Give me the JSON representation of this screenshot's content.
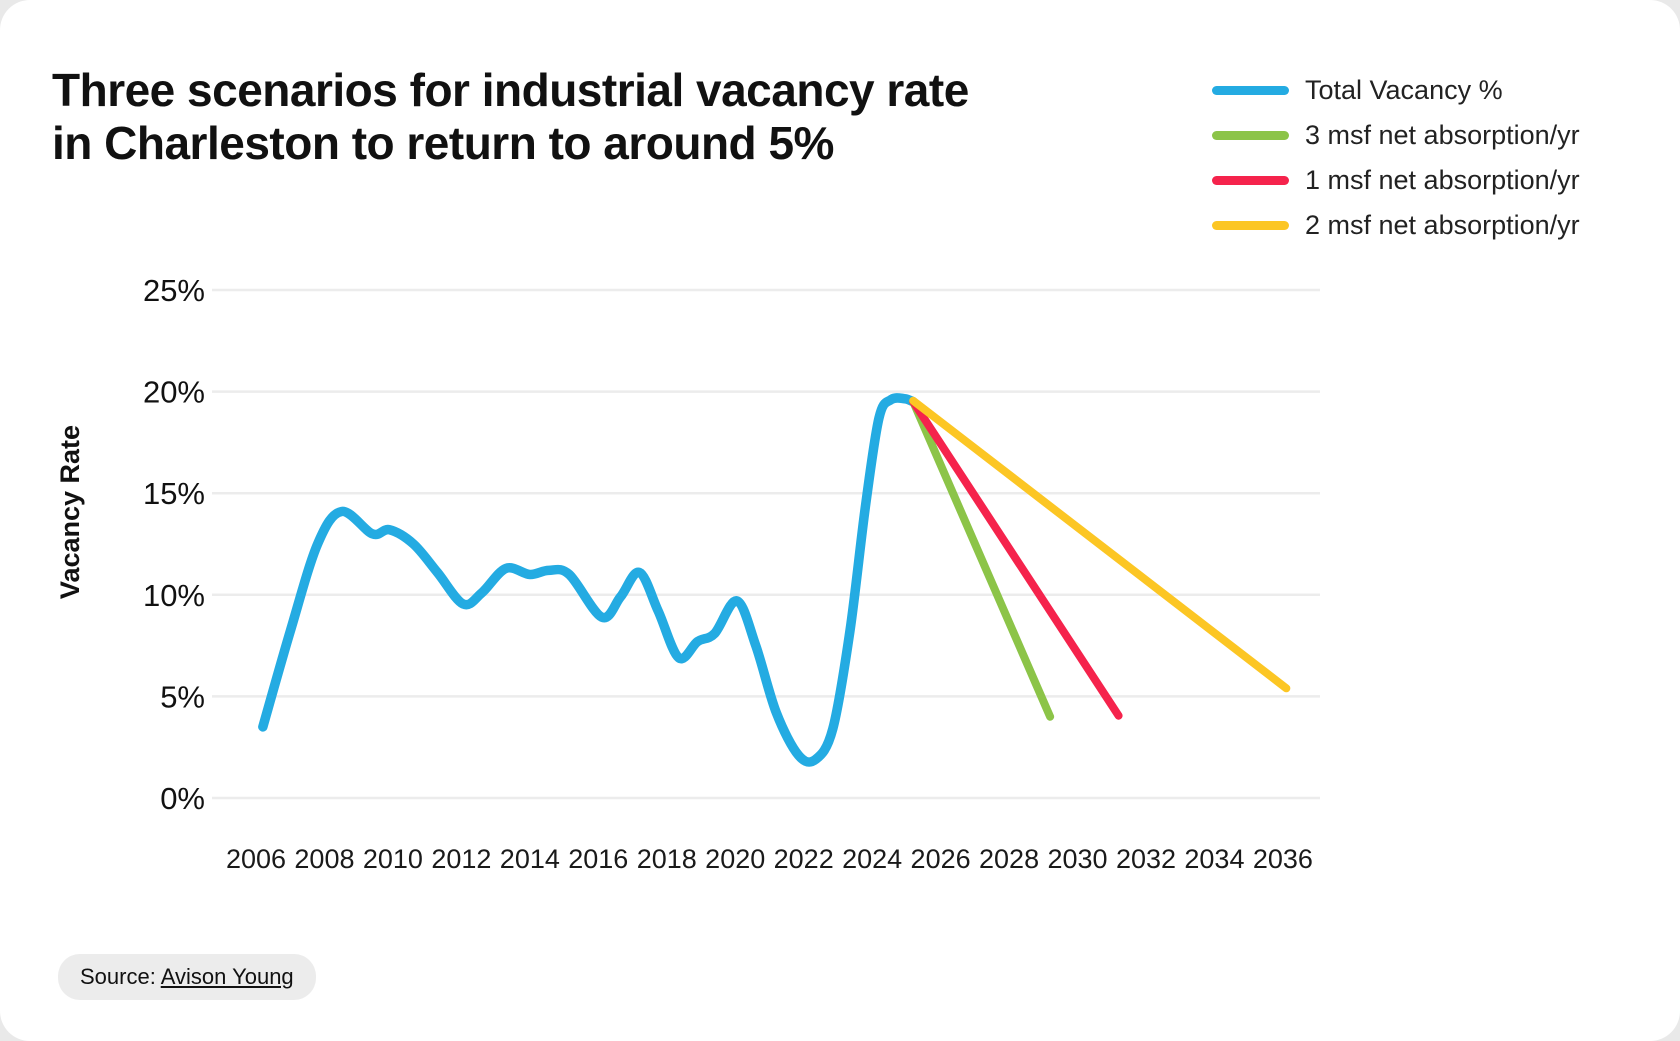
{
  "title": {
    "line1": "Three scenarios for industrial vacancy rate",
    "line2": "in Charleston to return to around 5%"
  },
  "legend": {
    "items": [
      {
        "label": "Total Vacancy %",
        "color": "#24ABE2"
      },
      {
        "label": "3 msf net absorption/yr",
        "color": "#8CC448"
      },
      {
        "label": "1 msf net absorption/yr",
        "color": "#F5234C"
      },
      {
        "label": "2 msf net absorption/yr",
        "color": "#FCC624"
      }
    ]
  },
  "source": {
    "prefix": "Source: ",
    "link_text": "Avison Young"
  },
  "chart_data": {
    "type": "line",
    "title": "Three scenarios for industrial vacancy rate in Charleston to return to around 5%",
    "xlabel": "",
    "ylabel": "Vacancy Rate",
    "xlim": [
      2005.5,
      2037.3
    ],
    "ylim": [
      0,
      25
    ],
    "grid": true,
    "grid_color": "#ececec",
    "legend_position": "top-right",
    "x_ticks": [
      2006,
      2008,
      2010,
      2012,
      2014,
      2016,
      2018,
      2020,
      2022,
      2024,
      2026,
      2028,
      2030,
      2032,
      2034,
      2036
    ],
    "y_ticks": [
      {
        "value": 0,
        "label": "0%"
      },
      {
        "value": 5,
        "label": "5%"
      },
      {
        "value": 10,
        "label": "10%"
      },
      {
        "value": 15,
        "label": "15%"
      },
      {
        "value": 20,
        "label": "20%"
      },
      {
        "value": 25,
        "label": "25%"
      }
    ],
    "series": [
      {
        "name": "Total Vacancy %",
        "color": "#24ABE2",
        "smooth": true,
        "stroke_width": 9.5,
        "points": [
          [
            2006.2,
            3.5
          ],
          [
            2007.0,
            8.2
          ],
          [
            2007.8,
            12.5
          ],
          [
            2008.5,
            14.1
          ],
          [
            2009.4,
            13.0
          ],
          [
            2009.9,
            13.2
          ],
          [
            2010.6,
            12.5
          ],
          [
            2011.3,
            11.1
          ],
          [
            2012.05,
            9.55
          ],
          [
            2012.6,
            10.1
          ],
          [
            2013.3,
            11.3
          ],
          [
            2014.0,
            11.0
          ],
          [
            2014.55,
            11.2
          ],
          [
            2015.15,
            11.0
          ],
          [
            2016.1,
            8.9
          ],
          [
            2016.65,
            9.9
          ],
          [
            2017.2,
            11.1
          ],
          [
            2017.75,
            9.2
          ],
          [
            2018.35,
            6.9
          ],
          [
            2018.9,
            7.7
          ],
          [
            2019.4,
            8.1
          ],
          [
            2020.05,
            9.7
          ],
          [
            2020.6,
            7.5
          ],
          [
            2021.2,
            4.2
          ],
          [
            2021.85,
            2.1
          ],
          [
            2022.35,
            1.9
          ],
          [
            2022.85,
            3.4
          ],
          [
            2023.35,
            8.2
          ],
          [
            2023.8,
            14.3
          ],
          [
            2024.2,
            18.7
          ],
          [
            2024.55,
            19.6
          ],
          [
            2024.95,
            19.65
          ],
          [
            2025.2,
            19.5
          ]
        ]
      },
      {
        "name": "3 msf net absorption/yr",
        "color": "#8CC448",
        "smooth": false,
        "stroke_width": 8,
        "points": [
          [
            2025.2,
            19.5
          ],
          [
            2029.2,
            4.0
          ]
        ]
      },
      {
        "name": "1 msf net absorption/yr",
        "color": "#F5234C",
        "smooth": false,
        "stroke_width": 8,
        "points": [
          [
            2025.2,
            19.5
          ],
          [
            2031.2,
            4.05
          ]
        ]
      },
      {
        "name": "2 msf net absorption/yr",
        "color": "#FCC624",
        "smooth": false,
        "stroke_width": 8,
        "points": [
          [
            2025.2,
            19.55
          ],
          [
            2036.1,
            5.4
          ]
        ]
      }
    ]
  }
}
